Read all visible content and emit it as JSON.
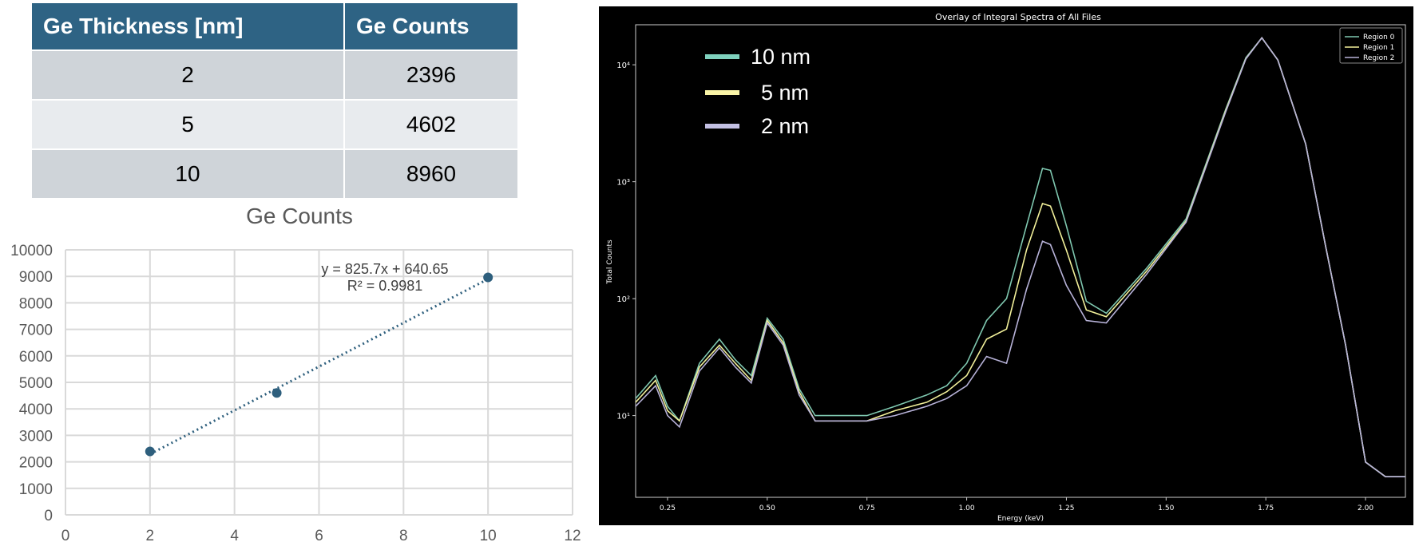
{
  "table": {
    "headers": [
      "Ge Thickness [nm]",
      "Ge Counts"
    ],
    "rows": [
      {
        "thickness": "2",
        "counts": "2396"
      },
      {
        "thickness": "5",
        "counts": "4602"
      },
      {
        "thickness": "10",
        "counts": "8960"
      }
    ]
  },
  "chart_data": [
    {
      "type": "scatter",
      "title": "Ge Counts",
      "xlabel": "",
      "ylabel": "",
      "x": [
        2,
        5,
        10
      ],
      "y": [
        2396,
        4602,
        8960
      ],
      "xlim": [
        0,
        12
      ],
      "ylim": [
        0,
        10000
      ],
      "xticks": [
        "0",
        "2",
        "4",
        "6",
        "8",
        "10",
        "12"
      ],
      "yticks": [
        "0",
        "1000",
        "2000",
        "3000",
        "4000",
        "5000",
        "6000",
        "7000",
        "8000",
        "9000",
        "10000"
      ],
      "grid": true,
      "marker_color": "#2e5f7d",
      "trendline": {
        "type": "linear",
        "slope": 825.7,
        "intercept": 640.65,
        "equation_label": "y = 825.7x + 640.65",
        "r2_label": "R² = 0.9981",
        "style": "dotted"
      }
    },
    {
      "type": "line",
      "title": "Overlay of Integral Spectra of All Files",
      "xlabel": "Energy (keV)",
      "ylabel": "Total Counts",
      "xlim": [
        0.17,
        2.1
      ],
      "ylim": [
        2,
        22000
      ],
      "yscale": "log",
      "xticks": [
        "0.25",
        "0.50",
        "0.75",
        "1.00",
        "1.25",
        "1.50",
        "1.75",
        "2.00"
      ],
      "yticks": [
        "10¹",
        "10²",
        "10³",
        "10⁴"
      ],
      "background": "#000000",
      "legend_position": "top-right",
      "series": [
        {
          "name": "Region 0",
          "color": "#7fc8b0",
          "x": [
            0.17,
            0.22,
            0.25,
            0.28,
            0.33,
            0.38,
            0.42,
            0.46,
            0.5,
            0.54,
            0.58,
            0.62,
            0.68,
            0.75,
            0.82,
            0.9,
            0.95,
            1.0,
            1.05,
            1.1,
            1.15,
            1.19,
            1.21,
            1.25,
            1.3,
            1.35,
            1.45,
            1.55,
            1.65,
            1.7,
            1.74,
            1.78,
            1.85,
            1.9,
            1.95,
            2.0,
            2.05,
            2.1
          ],
          "y": [
            14,
            22,
            12,
            9,
            28,
            45,
            30,
            22,
            68,
            45,
            17,
            10,
            10,
            10,
            12,
            15,
            18,
            28,
            65,
            100,
            420,
            1300,
            1250,
            420,
            95,
            75,
            180,
            480,
            4200,
            11500,
            17000,
            11000,
            2100,
            280,
            40,
            4,
            3,
            3
          ]
        },
        {
          "name": "Region 1",
          "color": "#f2f09a",
          "x": [
            0.17,
            0.22,
            0.25,
            0.28,
            0.33,
            0.38,
            0.42,
            0.46,
            0.5,
            0.54,
            0.58,
            0.62,
            0.68,
            0.75,
            0.82,
            0.9,
            0.95,
            1.0,
            1.05,
            1.1,
            1.15,
            1.19,
            1.21,
            1.25,
            1.3,
            1.35,
            1.45,
            1.55,
            1.65,
            1.7,
            1.74,
            1.78,
            1.85,
            1.9,
            1.95,
            2.0,
            2.05,
            2.1
          ],
          "y": [
            13,
            20,
            11,
            9,
            26,
            40,
            28,
            20,
            65,
            42,
            16,
            9,
            9,
            9,
            11,
            13,
            16,
            22,
            45,
            55,
            260,
            650,
            620,
            260,
            80,
            70,
            170,
            460,
            4100,
            11300,
            17000,
            11000,
            2100,
            280,
            40,
            4,
            3,
            3
          ]
        },
        {
          "name": "Region 2",
          "color": "#b7b2d8",
          "x": [
            0.17,
            0.22,
            0.25,
            0.28,
            0.33,
            0.38,
            0.42,
            0.46,
            0.5,
            0.54,
            0.58,
            0.62,
            0.68,
            0.75,
            0.82,
            0.9,
            0.95,
            1.0,
            1.05,
            1.1,
            1.15,
            1.19,
            1.21,
            1.25,
            1.3,
            1.35,
            1.45,
            1.55,
            1.65,
            1.7,
            1.74,
            1.78,
            1.85,
            1.9,
            1.95,
            2.0,
            2.05,
            2.1
          ],
          "y": [
            12,
            18,
            10,
            8,
            24,
            38,
            26,
            19,
            62,
            40,
            15,
            9,
            9,
            9,
            10,
            12,
            14,
            18,
            32,
            28,
            120,
            310,
            290,
            130,
            65,
            62,
            160,
            450,
            4000,
            11200,
            17000,
            11000,
            2100,
            280,
            40,
            4,
            3,
            3
          ]
        }
      ]
    }
  ],
  "spectrum_overlay_legend": [
    {
      "label": "10 nm",
      "color": "#7fd1bd"
    },
    {
      "label": "5 nm",
      "color": "#f9f3a6"
    },
    {
      "label": "2 nm",
      "color": "#c3c0e3"
    }
  ]
}
